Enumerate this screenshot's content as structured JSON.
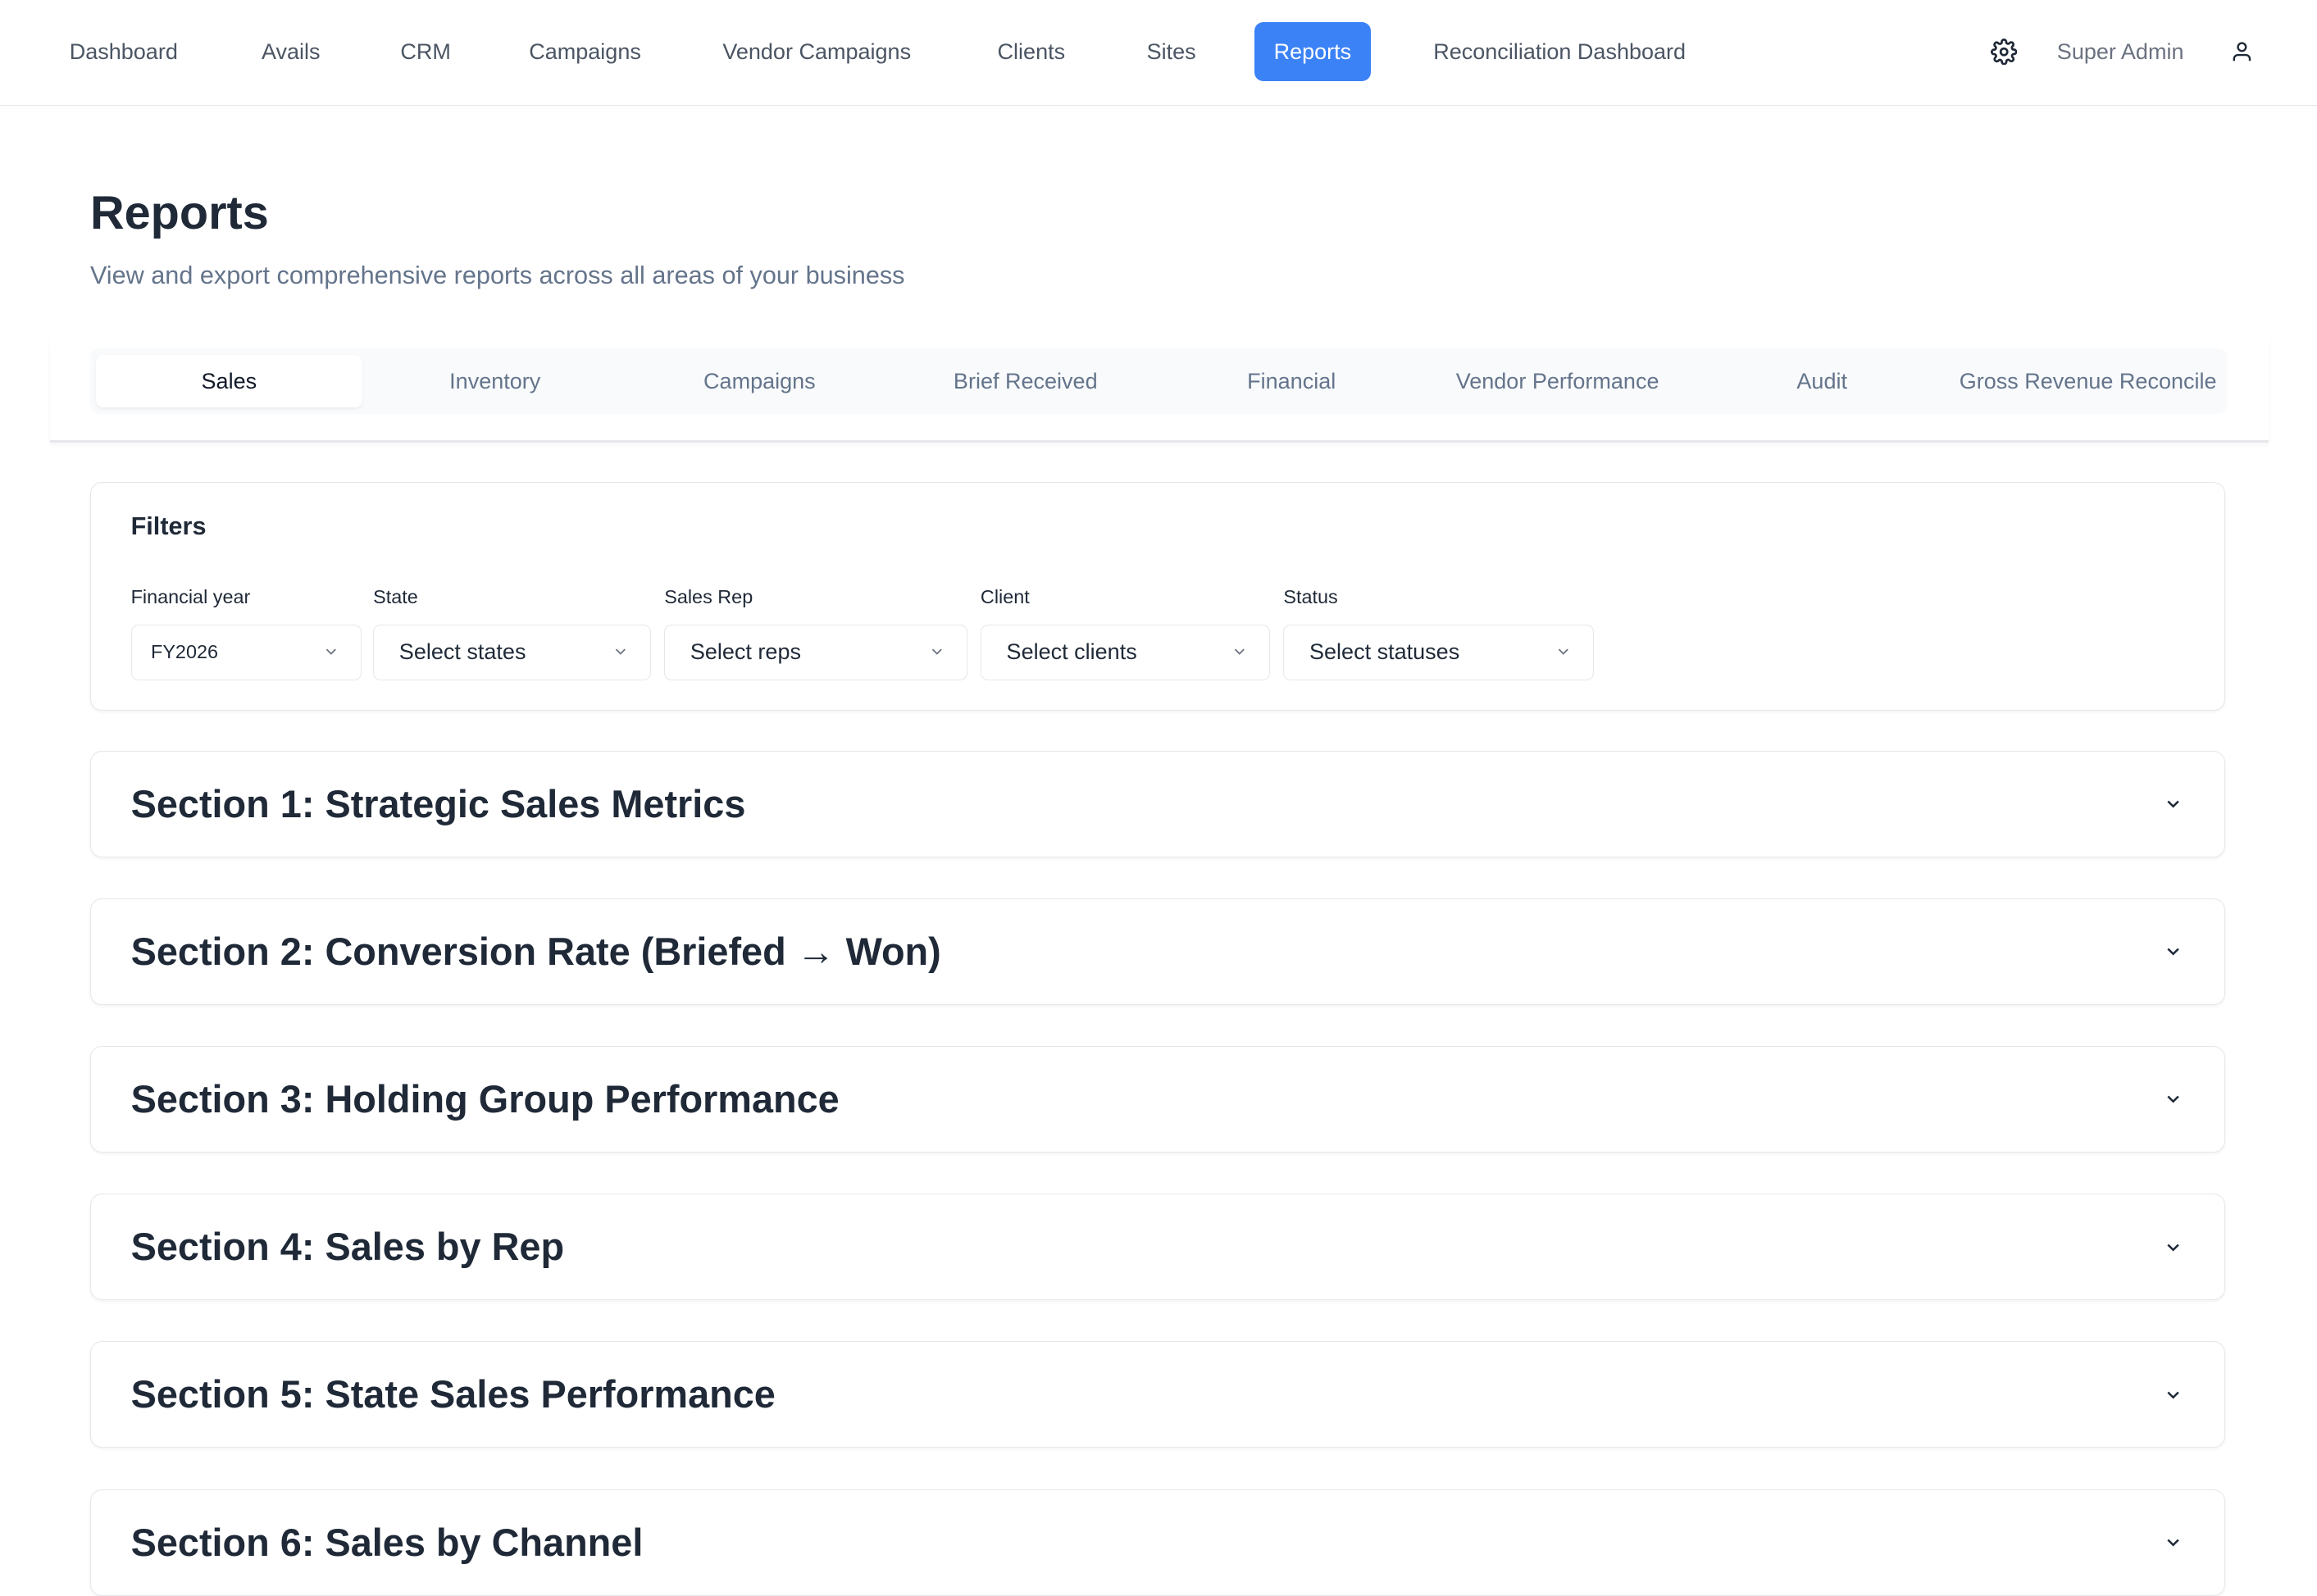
{
  "nav": {
    "items": [
      {
        "label": "Dashboard"
      },
      {
        "label": "Avails"
      },
      {
        "label": "CRM"
      },
      {
        "label": "Campaigns"
      },
      {
        "label": "Vendor Campaigns"
      },
      {
        "label": "Clients"
      },
      {
        "label": "Sites"
      },
      {
        "label": "Reports",
        "active": true
      },
      {
        "label": "Reconciliation Dashboard"
      }
    ],
    "user_label": "Super Admin",
    "accent": "#3b82f6"
  },
  "page": {
    "title": "Reports",
    "subtitle": "View and export comprehensive reports across all areas of your business"
  },
  "tabs": [
    {
      "label": "Sales",
      "active": true
    },
    {
      "label": "Inventory"
    },
    {
      "label": "Campaigns"
    },
    {
      "label": "Brief Received"
    },
    {
      "label": "Financial"
    },
    {
      "label": "Vendor Performance"
    },
    {
      "label": "Audit"
    },
    {
      "label": "Gross Revenue Reconcile"
    }
  ],
  "filters": {
    "title": "Filters",
    "fields": [
      {
        "label": "Financial year",
        "value": "FY2026"
      },
      {
        "label": "State",
        "placeholder": "Select states"
      },
      {
        "label": "Sales Rep",
        "placeholder": "Select reps"
      },
      {
        "label": "Client",
        "placeholder": "Select clients"
      },
      {
        "label": "Status",
        "placeholder": "Select statuses"
      }
    ]
  },
  "sections": [
    {
      "title": "Section 1: Strategic Sales Metrics"
    },
    {
      "title": "Section 2: Conversion Rate (Briefed → Won)"
    },
    {
      "title": "Section 3: Holding Group Performance"
    },
    {
      "title": "Section 4: Sales by Rep"
    },
    {
      "title": "Section 5: State Sales Performance"
    },
    {
      "title": "Section 6: Sales by Channel"
    }
  ]
}
